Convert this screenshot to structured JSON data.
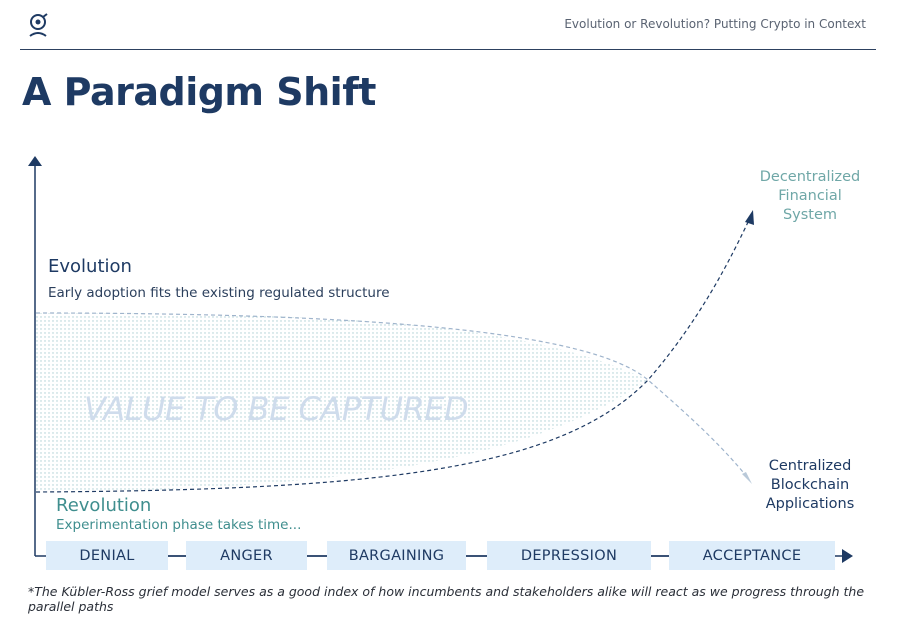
{
  "header": {
    "subtitle": "Evolution or Revolution? Putting Crypto in Context"
  },
  "title": "A Paradigm Shift",
  "evolution": {
    "label": "Evolution",
    "description": "Early adoption fits the existing regulated structure"
  },
  "revolution": {
    "label": "Revolution",
    "description": "Experimentation phase takes time..."
  },
  "area_label": "VALUE TO BE CAPTURED",
  "outcomes": {
    "upper": [
      "Decentralized",
      "Financial",
      "System"
    ],
    "lower": [
      "Centralized",
      "Blockchain",
      "Applications"
    ]
  },
  "stages": [
    "DENIAL",
    "ANGER",
    "BARGAINING",
    "DEPRESSION",
    "ACCEPTANCE"
  ],
  "footnote": "*The Kübler-Ross grief model serves as a good index of how incumbents and stakeholders alike will react as we progress through the parallel paths",
  "colors": {
    "navy": "#1e3a63",
    "teal": "#3f8e8e",
    "light_teal": "#6fa7a7",
    "stage_fill": "#deedfa",
    "area_label": "#cfdcec"
  }
}
